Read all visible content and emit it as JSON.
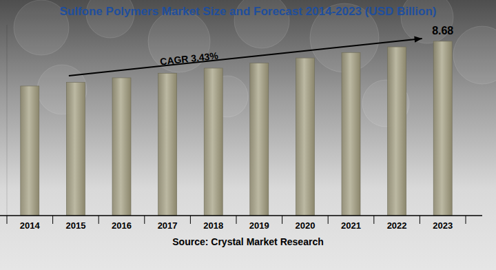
{
  "chart_data": {
    "type": "bar",
    "title": "Sulfone Polymers Market Size and Forecast 2014-2023 (USD Billion)",
    "categories": [
      "2014",
      "2015",
      "2016",
      "2017",
      "2018",
      "2019",
      "2020",
      "2021",
      "2022",
      "2023"
    ],
    "values": [
      6.45,
      6.63,
      6.86,
      7.09,
      7.34,
      7.59,
      7.85,
      8.12,
      8.4,
      8.68
    ],
    "color": "#8b866c",
    "ylim": [
      0,
      9.5
    ],
    "tick_labels": "x",
    "annotations": [
      "CAGR 3.43%"
    ],
    "source": "Source: Crystal Market Research"
  }
}
